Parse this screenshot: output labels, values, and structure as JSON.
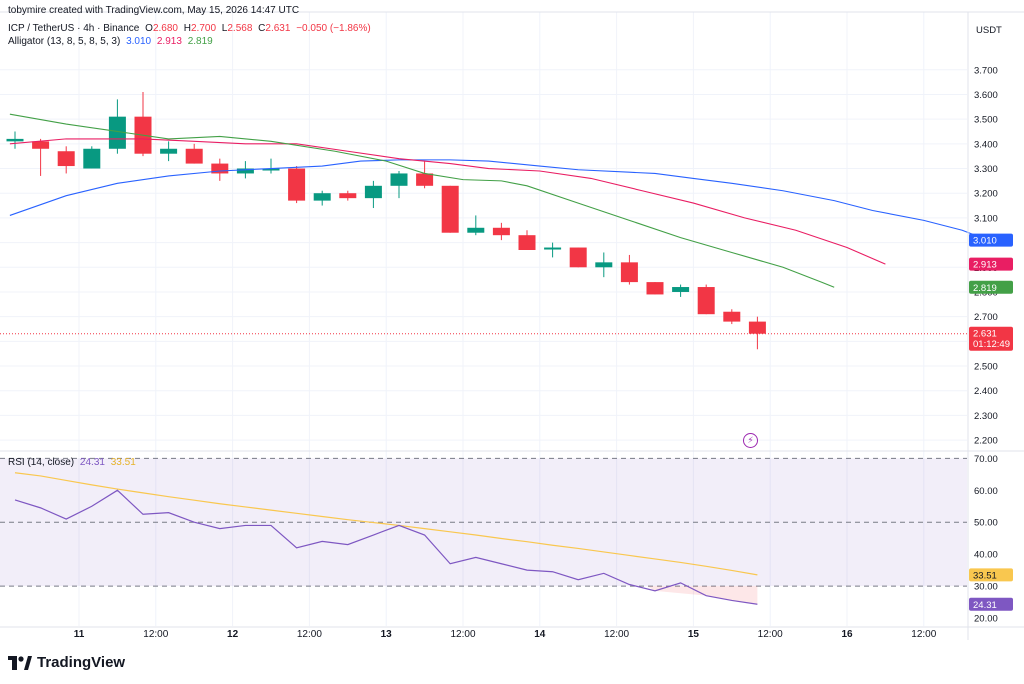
{
  "header": {
    "credit": "tobymire created with TradingView.com, May 15, 2026 14:47 UTC",
    "symbol": "ICP / TetherUS · 4h · Binance",
    "open_label": "O",
    "open": "2.680",
    "high_label": "H",
    "high": "2.700",
    "low_label": "L",
    "low": "2.568",
    "close_label": "C",
    "close": "2.631",
    "change": "−0.050 (−1.86%)"
  },
  "alligator_legend": {
    "label": "Alligator (13, 8, 5, 8, 5, 3)",
    "jaw": "3.010",
    "teeth": "2.913",
    "lips": "2.819"
  },
  "rsi_legend": {
    "label": "RSI (14, close)",
    "rsi": "24.31",
    "ma": "33.51"
  },
  "currency": "USDT",
  "colors": {
    "up": "#089981",
    "down": "#f23645",
    "jaw": "#2962ff",
    "teeth": "#e91e63",
    "lips": "#43a047",
    "rsi": "#7e57c2",
    "rsi_ma": "#f9c74f",
    "rsi_band": "#7e57c2"
  },
  "chart_data": [
    {
      "type": "candlestick",
      "ylim": [
        2.16,
        3.78
      ],
      "yticks": [
        "3.700",
        "3.600",
        "3.500",
        "3.400",
        "3.300",
        "3.200",
        "3.100",
        "3.000",
        "2.900",
        "2.800",
        "2.700",
        "2.600",
        "2.500",
        "2.400",
        "2.300",
        "2.200"
      ],
      "xticks": [
        {
          "i": 2.5,
          "label": "11"
        },
        {
          "i": 5.5,
          "label": "12:00"
        },
        {
          "i": 8.5,
          "label": "12"
        },
        {
          "i": 11.5,
          "label": "12:00"
        },
        {
          "i": 14.5,
          "label": "13"
        },
        {
          "i": 17.5,
          "label": "12:00"
        },
        {
          "i": 20.5,
          "label": "14"
        },
        {
          "i": 23.5,
          "label": "12:00"
        },
        {
          "i": 26.5,
          "label": "15"
        },
        {
          "i": 29.5,
          "label": "12:00"
        },
        {
          "i": 32.5,
          "label": "16"
        },
        {
          "i": 35.5,
          "label": "12:00"
        }
      ],
      "candles": [
        {
          "o": 3.41,
          "h": 3.45,
          "l": 3.38,
          "c": 3.42
        },
        {
          "o": 3.41,
          "h": 3.42,
          "l": 3.27,
          "c": 3.38
        },
        {
          "o": 3.37,
          "h": 3.39,
          "l": 3.28,
          "c": 3.31
        },
        {
          "o": 3.3,
          "h": 3.39,
          "l": 3.3,
          "c": 3.38
        },
        {
          "o": 3.38,
          "h": 3.58,
          "l": 3.36,
          "c": 3.51
        },
        {
          "o": 3.51,
          "h": 3.61,
          "l": 3.35,
          "c": 3.36
        },
        {
          "o": 3.36,
          "h": 3.41,
          "l": 3.33,
          "c": 3.38
        },
        {
          "o": 3.38,
          "h": 3.4,
          "l": 3.32,
          "c": 3.32
        },
        {
          "o": 3.32,
          "h": 3.34,
          "l": 3.25,
          "c": 3.28
        },
        {
          "o": 3.28,
          "h": 3.33,
          "l": 3.26,
          "c": 3.3
        },
        {
          "o": 3.3,
          "h": 3.34,
          "l": 3.28,
          "c": 3.3
        },
        {
          "o": 3.3,
          "h": 3.31,
          "l": 3.16,
          "c": 3.17
        },
        {
          "o": 3.17,
          "h": 3.21,
          "l": 3.15,
          "c": 3.2
        },
        {
          "o": 3.2,
          "h": 3.21,
          "l": 3.17,
          "c": 3.18
        },
        {
          "o": 3.18,
          "h": 3.25,
          "l": 3.14,
          "c": 3.23
        },
        {
          "o": 3.23,
          "h": 3.29,
          "l": 3.18,
          "c": 3.28
        },
        {
          "o": 3.28,
          "h": 3.33,
          "l": 3.22,
          "c": 3.23
        },
        {
          "o": 3.23,
          "h": 3.23,
          "l": 3.04,
          "c": 3.04
        },
        {
          "o": 3.04,
          "h": 3.11,
          "l": 3.03,
          "c": 3.06
        },
        {
          "o": 3.06,
          "h": 3.08,
          "l": 3.01,
          "c": 3.03
        },
        {
          "o": 3.03,
          "h": 3.05,
          "l": 2.97,
          "c": 2.97
        },
        {
          "o": 2.98,
          "h": 3.0,
          "l": 2.94,
          "c": 2.98
        },
        {
          "o": 2.98,
          "h": 2.98,
          "l": 2.9,
          "c": 2.9
        },
        {
          "o": 2.9,
          "h": 2.96,
          "l": 2.86,
          "c": 2.92
        },
        {
          "o": 2.92,
          "h": 2.95,
          "l": 2.83,
          "c": 2.84
        },
        {
          "o": 2.84,
          "h": 2.84,
          "l": 2.79,
          "c": 2.79
        },
        {
          "o": 2.8,
          "h": 2.83,
          "l": 2.78,
          "c": 2.82
        },
        {
          "o": 2.82,
          "h": 2.83,
          "l": 2.71,
          "c": 2.71
        },
        {
          "o": 2.72,
          "h": 2.73,
          "l": 2.67,
          "c": 2.68
        },
        {
          "o": 2.68,
          "h": 2.7,
          "l": 2.568,
          "c": 2.631
        }
      ],
      "alligator": {
        "jaw": [
          [
            -0.2,
            3.11
          ],
          [
            2,
            3.19
          ],
          [
            4,
            3.24
          ],
          [
            6,
            3.27
          ],
          [
            8,
            3.29
          ],
          [
            10,
            3.3
          ],
          [
            12,
            3.31
          ],
          [
            13.5,
            3.33
          ],
          [
            15,
            3.335
          ],
          [
            17,
            3.335
          ],
          [
            18.5,
            3.33
          ],
          [
            20.5,
            3.31
          ],
          [
            22,
            3.295
          ],
          [
            24,
            3.285
          ],
          [
            25,
            3.28
          ],
          [
            26.5,
            3.26
          ],
          [
            28,
            3.24
          ],
          [
            30,
            3.21
          ],
          [
            32,
            3.17
          ],
          [
            33.5,
            3.13
          ],
          [
            35.5,
            3.09
          ],
          [
            37,
            3.05
          ],
          [
            38,
            3.01
          ]
        ],
        "teeth": [
          [
            -0.2,
            3.4
          ],
          [
            2,
            3.42
          ],
          [
            5,
            3.42
          ],
          [
            7,
            3.41
          ],
          [
            9,
            3.4
          ],
          [
            11,
            3.4
          ],
          [
            13,
            3.37
          ],
          [
            15,
            3.34
          ],
          [
            17,
            3.32
          ],
          [
            18.5,
            3.3
          ],
          [
            20.5,
            3.29
          ],
          [
            22.5,
            3.26
          ],
          [
            24.5,
            3.21
          ],
          [
            26.5,
            3.16
          ],
          [
            28.5,
            3.1
          ],
          [
            30.5,
            3.05
          ],
          [
            32.5,
            2.98
          ],
          [
            34,
            2.913
          ]
        ],
        "lips": [
          [
            -0.2,
            3.52
          ],
          [
            2,
            3.48
          ],
          [
            4,
            3.45
          ],
          [
            6,
            3.42
          ],
          [
            8,
            3.43
          ],
          [
            10,
            3.41
          ],
          [
            12.5,
            3.37
          ],
          [
            14.5,
            3.33
          ],
          [
            16,
            3.28
          ],
          [
            17.5,
            3.255
          ],
          [
            19,
            3.25
          ],
          [
            20,
            3.23
          ],
          [
            22,
            3.16
          ],
          [
            24,
            3.09
          ],
          [
            26,
            3.02
          ],
          [
            28,
            2.96
          ],
          [
            30,
            2.9
          ],
          [
            31.5,
            2.84
          ],
          [
            32,
            2.819
          ]
        ]
      }
    },
    {
      "type": "line",
      "ylim": [
        17.5,
        72
      ],
      "yticks": [
        "70.00",
        "60.00",
        "50.00",
        "40.00",
        "30.00",
        "20.00"
      ],
      "bands": [
        30,
        50,
        70
      ],
      "rsi": [
        57,
        54.5,
        51,
        55,
        60,
        52.5,
        53,
        50,
        48,
        49,
        49,
        42,
        44,
        43,
        46,
        49,
        46,
        37,
        39,
        37,
        35,
        34.5,
        32,
        34,
        30.5,
        28.5,
        31,
        27,
        25.5,
        24.31
      ],
      "rsi_ma": [
        65.5,
        64.5,
        63.1,
        61.7,
        60.4,
        59.2,
        58,
        56.9,
        55.8,
        54.8,
        53.8,
        52.8,
        51.8,
        50.8,
        49.9,
        49,
        48,
        47,
        46,
        44.9,
        43.9,
        42.8,
        41.8,
        40.7,
        39.6,
        38.5,
        37.4,
        36.2,
        34.9,
        33.51
      ]
    }
  ],
  "tags": {
    "jaw": "3.010",
    "teeth": "2.913",
    "lips": "2.819",
    "last": "2.631",
    "countdown": "01:12:49",
    "rsi_ma": "33.51",
    "rsi": "24.31"
  },
  "brand": "TradingView",
  "icons": {
    "alert": "lightning-icon",
    "logo": "tradingview-logo-icon"
  }
}
